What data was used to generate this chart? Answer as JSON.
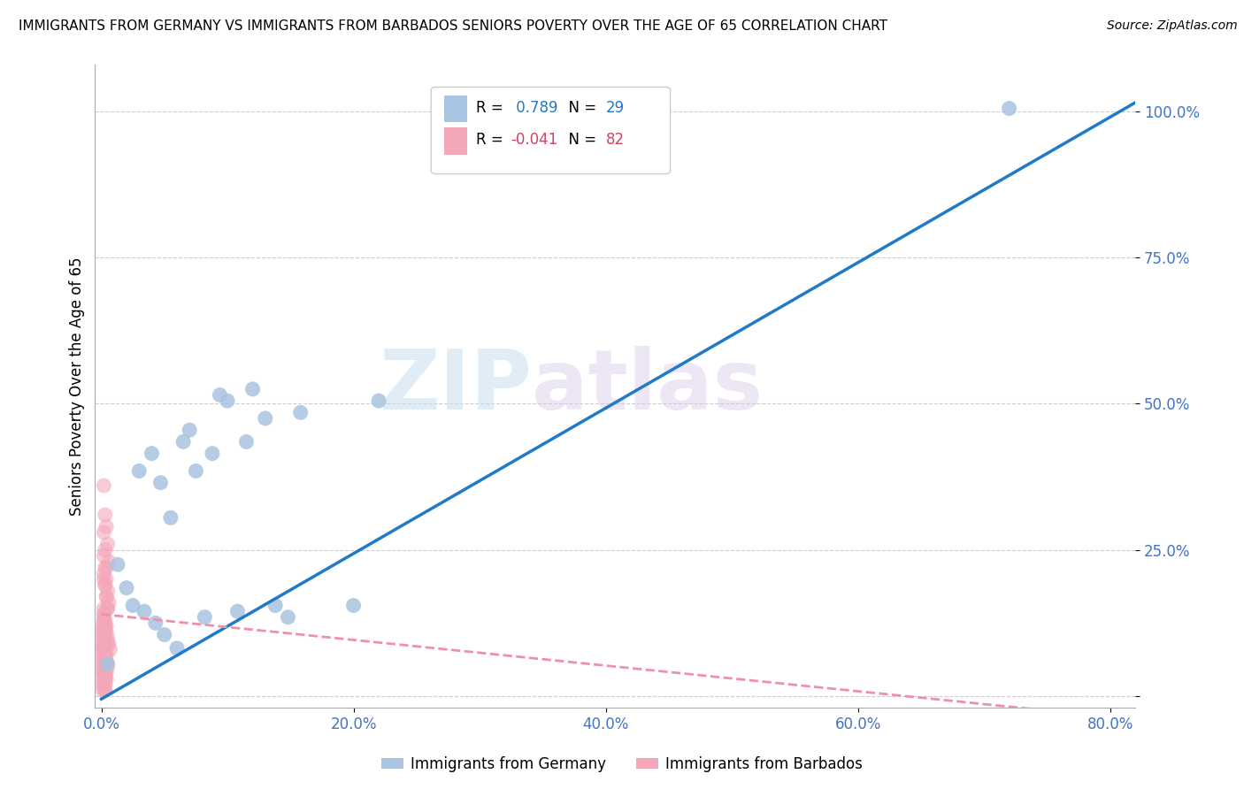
{
  "title": "IMMIGRANTS FROM GERMANY VS IMMIGRANTS FROM BARBADOS SENIORS POVERTY OVER THE AGE OF 65 CORRELATION CHART",
  "source": "Source: ZipAtlas.com",
  "tick_color": "#4472c4",
  "ylabel": "Seniors Poverty Over the Age of 65",
  "xlim": [
    -0.005,
    0.82
  ],
  "ylim": [
    -0.02,
    1.08
  ],
  "x_ticks": [
    0.0,
    0.2,
    0.4,
    0.6,
    0.8
  ],
  "x_tick_labels": [
    "0.0%",
    "20.0%",
    "40.0%",
    "60.0%",
    "80.0%"
  ],
  "y_ticks": [
    0.0,
    0.25,
    0.5,
    0.75,
    1.0
  ],
  "y_tick_labels": [
    "",
    "25.0%",
    "50.0%",
    "75.0%",
    "100.0%"
  ],
  "germany_color": "#a8c4e0",
  "barbados_color": "#f4a7b9",
  "germany_line_color": "#1f7bc8",
  "barbados_line_color": "#f090a8",
  "germany_R": 0.789,
  "germany_N": 29,
  "barbados_R": -0.041,
  "barbados_N": 82,
  "watermark_zip": "ZIP",
  "watermark_atlas": "atlas",
  "germany_scatter_x": [
    0.005,
    0.013,
    0.02,
    0.025,
    0.03,
    0.034,
    0.04,
    0.043,
    0.047,
    0.05,
    0.055,
    0.06,
    0.065,
    0.07,
    0.075,
    0.082,
    0.088,
    0.094,
    0.1,
    0.108,
    0.115,
    0.12,
    0.13,
    0.138,
    0.148,
    0.158,
    0.2,
    0.22,
    0.72
  ],
  "germany_scatter_y": [
    0.055,
    0.225,
    0.185,
    0.155,
    0.385,
    0.145,
    0.415,
    0.125,
    0.365,
    0.105,
    0.305,
    0.082,
    0.435,
    0.455,
    0.385,
    0.135,
    0.415,
    0.515,
    0.505,
    0.145,
    0.435,
    0.525,
    0.475,
    0.155,
    0.135,
    0.485,
    0.155,
    0.505,
    1.005
  ],
  "germany_line_x": [
    0.0,
    0.82
  ],
  "germany_line_y": [
    -0.005,
    1.015
  ],
  "barbados_line_x": [
    0.0,
    0.82
  ],
  "barbados_line_y": [
    0.14,
    -0.04
  ],
  "barbados_scatter_x": [
    0.002,
    0.003,
    0.004,
    0.005,
    0.006,
    0.002,
    0.003,
    0.004,
    0.002,
    0.003,
    0.004,
    0.005,
    0.002,
    0.003,
    0.004,
    0.005,
    0.006,
    0.007,
    0.002,
    0.003,
    0.004,
    0.005,
    0.006,
    0.002,
    0.003,
    0.004,
    0.005,
    0.002,
    0.003,
    0.004,
    0.005,
    0.003,
    0.004,
    0.005,
    0.003,
    0.004,
    0.003,
    0.004,
    0.003,
    0.003,
    0.003,
    0.004,
    0.003,
    0.003,
    0.003,
    0.003,
    0.003,
    0.003,
    0.003,
    0.003,
    0.003,
    0.003,
    0.003,
    0.003,
    0.003,
    0.003,
    0.002,
    0.002,
    0.002,
    0.002,
    0.002,
    0.002,
    0.002,
    0.002,
    0.002,
    0.002,
    0.002,
    0.002,
    0.002,
    0.002,
    0.001,
    0.001,
    0.001,
    0.001,
    0.001,
    0.001,
    0.001,
    0.001,
    0.001,
    0.001,
    0.001,
    0.001
  ],
  "barbados_scatter_y": [
    0.36,
    0.31,
    0.29,
    0.26,
    0.23,
    0.28,
    0.25,
    0.22,
    0.2,
    0.19,
    0.17,
    0.15,
    0.14,
    0.13,
    0.12,
    0.1,
    0.09,
    0.08,
    0.24,
    0.22,
    0.2,
    0.18,
    0.16,
    0.21,
    0.19,
    0.17,
    0.15,
    0.13,
    0.12,
    0.11,
    0.09,
    0.07,
    0.06,
    0.05,
    0.04,
    0.03,
    0.05,
    0.04,
    0.06,
    0.07,
    0.08,
    0.07,
    0.09,
    0.1,
    0.11,
    0.12,
    0.03,
    0.02,
    0.01,
    0.02,
    0.01,
    0.03,
    0.04,
    0.05,
    0.06,
    0.07,
    0.08,
    0.09,
    0.1,
    0.11,
    0.12,
    0.13,
    0.14,
    0.15,
    0.04,
    0.05,
    0.06,
    0.07,
    0.08,
    0.09,
    0.05,
    0.06,
    0.07,
    0.08,
    0.09,
    0.1,
    0.11,
    0.12,
    0.01,
    0.02,
    0.03,
    0.04
  ]
}
